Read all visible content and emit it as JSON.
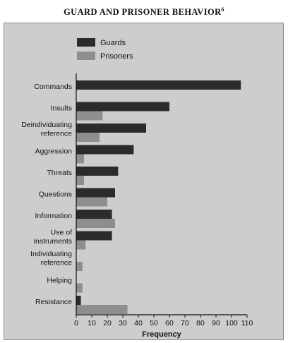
{
  "page_title": "GUARD AND PRISONER BEHAVIOR",
  "title_footnote": "6",
  "chart_data": {
    "type": "bar",
    "orientation": "horizontal",
    "categories": [
      "Commands",
      "Insults",
      "Deindividuating reference",
      "Aggression",
      "Threats",
      "Questions",
      "Information",
      "Use of instruments",
      "Individuating reference",
      "Helping",
      "Resistance"
    ],
    "series": [
      {
        "name": "Guards",
        "color": "#2b2b2b",
        "values": [
          106,
          60,
          45,
          37,
          27,
          25,
          23,
          23,
          0,
          0,
          3
        ]
      },
      {
        "name": "Prisoners",
        "color": "#8e8e8e",
        "values": [
          0,
          17,
          15,
          5,
          5,
          20,
          25,
          6,
          4,
          4,
          33
        ]
      }
    ],
    "xlabel": "Frequency",
    "xlim": [
      0,
      110
    ],
    "xticks": [
      0,
      10,
      20,
      30,
      40,
      50,
      60,
      70,
      80,
      90,
      100,
      110
    ],
    "legend_position": "top-left",
    "grid": false
  }
}
